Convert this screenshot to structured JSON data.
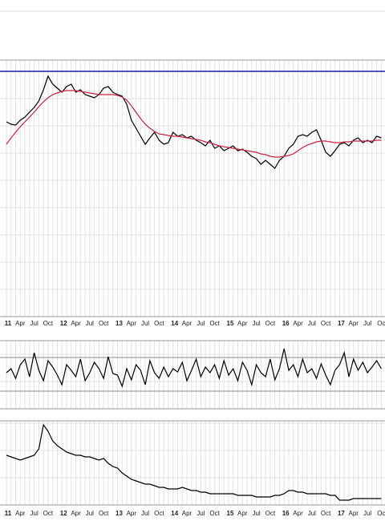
{
  "chart_data": [
    {
      "type": "line",
      "categories": [
        "11",
        null,
        null,
        "Apr",
        null,
        null,
        "Jul",
        null,
        null,
        "Oct",
        null,
        null,
        "12",
        null,
        null,
        "Apr",
        null,
        null,
        "Jul",
        null,
        null,
        "Oct",
        null,
        null,
        "13",
        null,
        null,
        "Apr",
        null,
        null,
        "Jul",
        null,
        null,
        "Oct",
        null,
        null,
        "14",
        null,
        null,
        "Apr",
        null,
        null,
        "Jul",
        null,
        null,
        "Oct",
        null,
        null,
        "15",
        null,
        null,
        "Apr",
        null,
        null,
        "Jul",
        null,
        null,
        "Oct",
        null,
        null,
        "16",
        null,
        null,
        "Apr",
        null,
        null,
        "Jul",
        null,
        null,
        "Oct",
        null,
        null,
        "17",
        null,
        null,
        "Apr",
        null,
        null,
        "Jul",
        null,
        null,
        "Oc"
      ],
      "ylim": [
        0,
        320
      ],
      "hline": {
        "value": 306,
        "color": "#1c1cb4"
      },
      "series": [
        {
          "color": "#000000",
          "values": [
            243,
            240,
            239,
            245,
            249,
            255,
            261,
            269,
            283,
            300,
            290,
            285,
            280,
            287,
            290,
            280,
            283,
            277,
            275,
            273,
            277,
            285,
            287,
            280,
            277,
            275,
            265,
            245,
            235,
            225,
            215,
            223,
            230,
            220,
            215,
            217,
            230,
            225,
            227,
            223,
            225,
            220,
            217,
            213,
            220,
            210,
            213,
            207,
            210,
            213,
            207,
            209,
            205,
            200,
            197,
            190,
            195,
            190,
            185,
            195,
            200,
            210,
            215,
            225,
            227,
            225,
            230,
            233,
            220,
            205,
            200,
            207,
            215,
            217,
            213,
            220,
            223,
            217,
            220,
            217,
            225,
            223
          ]
        },
        {
          "color": "#cc2244",
          "values": [
            215,
            223,
            230,
            237,
            243,
            249,
            255,
            262,
            268,
            273,
            277,
            279,
            281,
            282,
            282,
            282,
            281,
            280,
            279,
            278,
            277,
            277,
            277,
            277,
            276,
            274,
            270,
            263,
            255,
            247,
            240,
            235,
            231,
            228,
            227,
            226,
            225,
            225,
            224,
            223,
            222,
            221,
            220,
            218,
            217,
            215,
            213,
            212,
            211,
            210,
            209,
            208,
            207,
            206,
            205,
            203,
            202,
            200,
            199,
            199,
            200,
            201,
            203,
            207,
            211,
            214,
            216,
            218,
            219,
            219,
            218,
            217,
            217,
            218,
            218,
            219,
            219,
            219,
            219,
            219,
            220,
            220
          ]
        }
      ]
    },
    {
      "type": "line",
      "ylim": [
        0,
        85
      ],
      "hlines": [
        64,
        22
      ],
      "series": [
        {
          "color": "#000000",
          "values": [
            45,
            50,
            38,
            55,
            62,
            40,
            70,
            48,
            35,
            60,
            52,
            42,
            30,
            55,
            48,
            40,
            62,
            35,
            45,
            58,
            50,
            38,
            65,
            44,
            42,
            28,
            50,
            36,
            55,
            48,
            30,
            60,
            45,
            38,
            52,
            40,
            50,
            46,
            58,
            35,
            48,
            62,
            40,
            52,
            45,
            55,
            38,
            60,
            42,
            50,
            35,
            58,
            48,
            30,
            55,
            45,
            40,
            62,
            36,
            50,
            75,
            48,
            55,
            40,
            62,
            45,
            50,
            38,
            56,
            42,
            30,
            48,
            55,
            70,
            40,
            62,
            48,
            58,
            45,
            52,
            60,
            50
          ]
        }
      ]
    },
    {
      "type": "line",
      "categories": [
        "11",
        null,
        null,
        "Apr",
        null,
        null,
        "Jul",
        null,
        null,
        "Oct",
        null,
        null,
        "12",
        null,
        null,
        "Apr",
        null,
        null,
        "Jul",
        null,
        null,
        "Oct",
        null,
        null,
        "13",
        null,
        null,
        "Apr",
        null,
        null,
        "Jul",
        null,
        null,
        "Oct",
        null,
        null,
        "14",
        null,
        null,
        "Apr",
        null,
        null,
        "Jul",
        null,
        null,
        "Oct",
        null,
        null,
        "15",
        null,
        null,
        "Apr",
        null,
        null,
        "Jul",
        null,
        null,
        "Oct",
        null,
        null,
        "16",
        null,
        null,
        "Apr",
        null,
        null,
        "Jul",
        null,
        null,
        "Oct",
        null,
        null,
        "17",
        null,
        null,
        "Apr",
        null,
        null,
        "Jul",
        null,
        null,
        "Oc"
      ],
      "ylim": [
        0,
        105
      ],
      "series": [
        {
          "color": "#000000",
          "values": [
            62,
            60,
            58,
            56,
            58,
            60,
            62,
            70,
            100,
            92,
            80,
            74,
            70,
            66,
            64,
            62,
            62,
            60,
            60,
            58,
            56,
            58,
            52,
            48,
            46,
            40,
            36,
            32,
            30,
            28,
            26,
            26,
            24,
            22,
            22,
            20,
            20,
            20,
            22,
            20,
            18,
            18,
            16,
            16,
            14,
            14,
            14,
            14,
            14,
            14,
            12,
            12,
            12,
            12,
            10,
            10,
            10,
            10,
            12,
            12,
            14,
            18,
            18,
            16,
            16,
            14,
            14,
            14,
            14,
            14,
            12,
            12,
            6,
            6,
            6,
            8,
            8,
            8,
            8,
            8,
            8,
            8
          ]
        }
      ]
    }
  ]
}
